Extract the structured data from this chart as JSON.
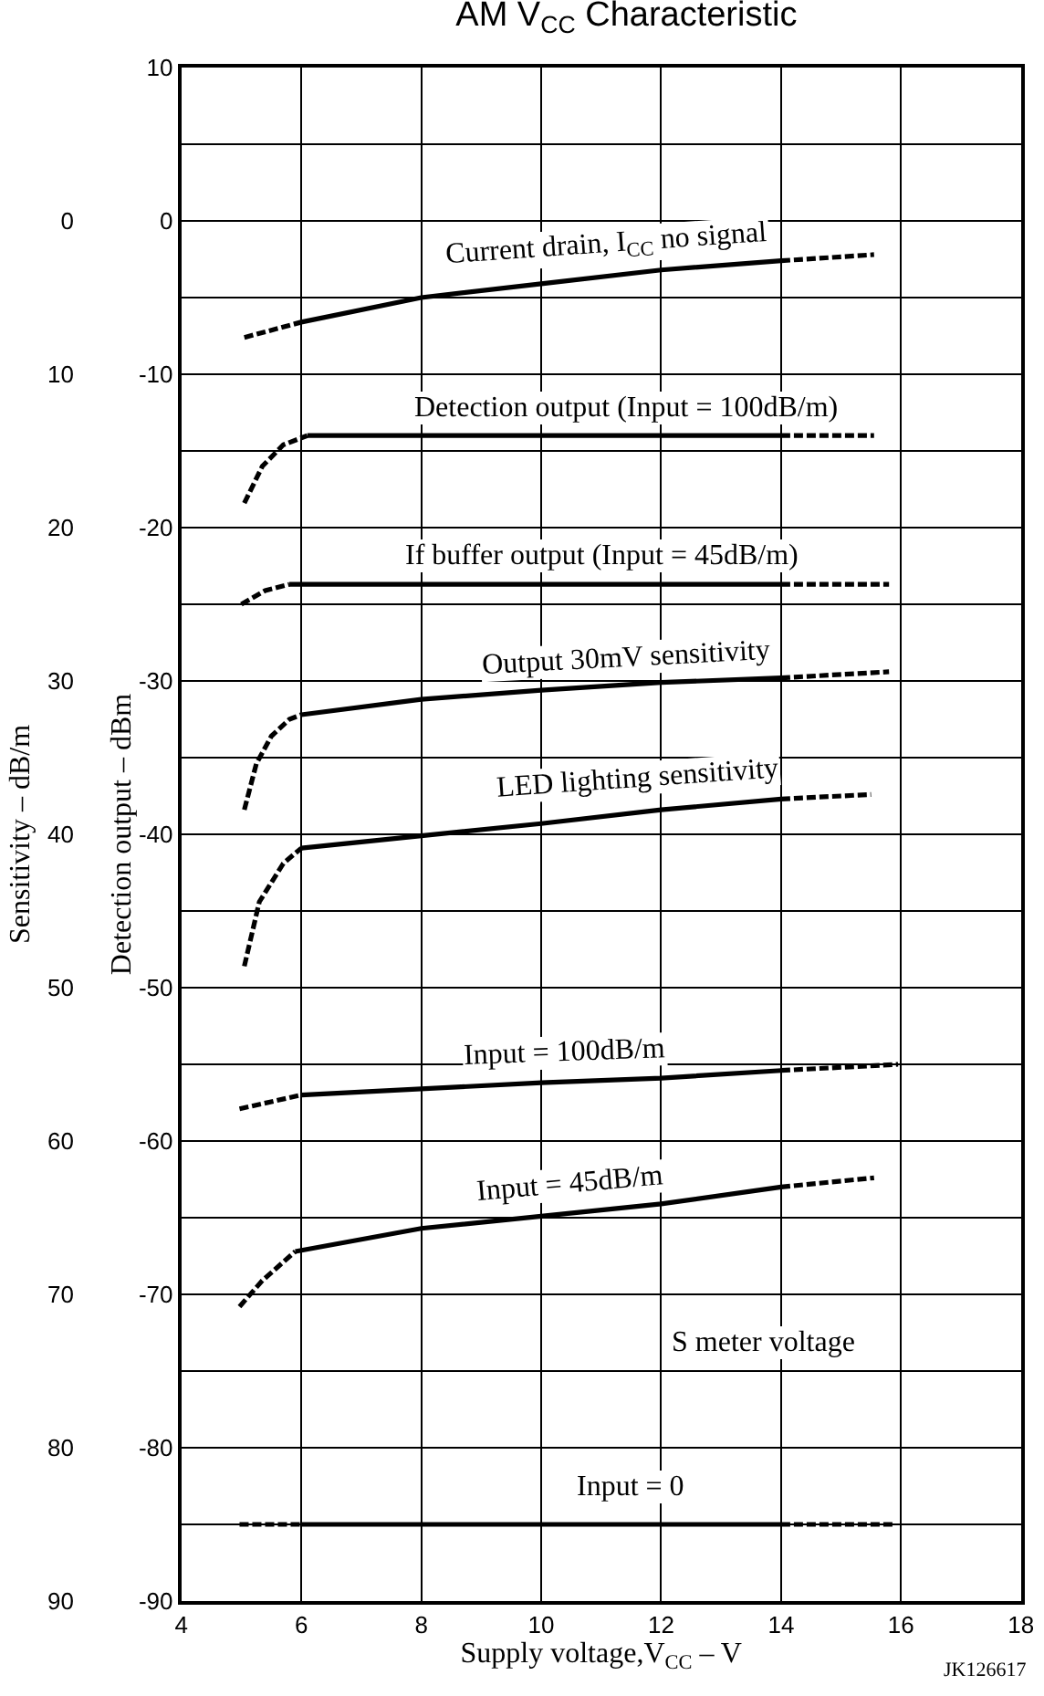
{
  "chart_data": {
    "type": "line",
    "title": "AM V$_{CC}$ Characteristic",
    "xlabel": "Supply voltage,V$_{CC}$ – V",
    "ylabel": "Detection output – dBm",
    "y2label": "Sensitivity – dB/m",
    "xlim": [
      4,
      18
    ],
    "xticks": [
      4,
      6,
      8,
      10,
      12,
      14,
      16,
      18
    ],
    "ylim": [
      -90,
      10
    ],
    "yticks": [
      10,
      {
        "value": 5,
        "label": null
      },
      0,
      {
        "value": -5,
        "label": null
      },
      -10,
      {
        "value": -15,
        "label": null
      },
      -20,
      {
        "value": -25,
        "label": null
      },
      -30,
      {
        "value": -35,
        "label": null
      },
      -40,
      {
        "value": -45,
        "label": null
      },
      -50,
      {
        "value": -55,
        "label": null
      },
      -60,
      {
        "value": -65,
        "label": null
      },
      -70,
      {
        "value": -75,
        "label": null
      },
      -80,
      {
        "value": -85,
        "label": null
      },
      -90
    ],
    "y2lim": [
      90,
      -10
    ],
    "y2ticks": [
      0,
      10,
      20,
      30,
      40,
      50,
      60,
      70,
      80,
      90
    ],
    "grid": true,
    "marker": "none",
    "series": [
      {
        "x": [
          5.05,
          6
        ],
        "values": [
          -7.6,
          -6.6
        ],
        "color": "#000000",
        "line_style": "dashed"
      },
      {
        "x": [
          6,
          8,
          10,
          12,
          14
        ],
        "values": [
          -6.6,
          -5.0,
          -4.1,
          -3.2,
          -2.6
        ],
        "color": "#000000",
        "line_style": "solid"
      },
      {
        "x": [
          14,
          15.55
        ],
        "values": [
          -2.6,
          -2.2
        ],
        "color": "#000000",
        "line_style": "dashed"
      },
      {
        "x": [
          5.05,
          5.35,
          5.7,
          6.1
        ],
        "values": [
          -18.4,
          -16.0,
          -14.6,
          -14.0
        ],
        "color": "#000000",
        "line_style": "dashed"
      },
      {
        "x": [
          6.1,
          10,
          14
        ],
        "values": [
          -14.0,
          -14.0,
          -14.0
        ],
        "color": "#000000",
        "line_style": "solid"
      },
      {
        "x": [
          14,
          15.55
        ],
        "values": [
          -14.0,
          -14.0
        ],
        "color": "#000000",
        "line_style": "dashed"
      },
      {
        "x": [
          5.0,
          5.4,
          5.8
        ],
        "values": [
          -25.0,
          -24.1,
          -23.7
        ],
        "color": "#000000",
        "line_style": "dashed"
      },
      {
        "x": [
          5.8,
          10,
          14
        ],
        "values": [
          -23.7,
          -23.7,
          -23.7
        ],
        "color": "#000000",
        "line_style": "solid"
      },
      {
        "x": [
          14,
          15.8
        ],
        "values": [
          -23.7,
          -23.7
        ],
        "color": "#000000",
        "line_style": "dashed"
      },
      {
        "x": [
          5.05,
          5.25,
          5.5,
          5.8,
          6
        ],
        "values": [
          -38.4,
          -35.4,
          -33.6,
          -32.5,
          -32.2
        ],
        "color": "#000000",
        "line_style": "dashed"
      },
      {
        "x": [
          6,
          8,
          10,
          12,
          14
        ],
        "values": [
          -32.2,
          -31.2,
          -30.6,
          -30.1,
          -29.8
        ],
        "color": "#000000",
        "line_style": "solid"
      },
      {
        "x": [
          14,
          15.8
        ],
        "values": [
          -29.8,
          -29.4
        ],
        "color": "#000000",
        "line_style": "dashed"
      },
      {
        "x": [
          5.05,
          5.3,
          5.7,
          6
        ],
        "values": [
          -48.6,
          -44.4,
          -41.9,
          -40.9
        ],
        "color": "#000000",
        "line_style": "dashed"
      },
      {
        "x": [
          6,
          8,
          10,
          12,
          14
        ],
        "values": [
          -40.9,
          -40.1,
          -39.3,
          -38.4,
          -37.7
        ],
        "color": "#000000",
        "line_style": "solid"
      },
      {
        "x": [
          14,
          15.5
        ],
        "values": [
          -37.7,
          -37.4
        ],
        "color": "#000000",
        "line_style": "dashed"
      },
      {
        "x": [
          4.97,
          6
        ],
        "values": [
          -57.9,
          -57.0
        ],
        "color": "#000000",
        "line_style": "dashed"
      },
      {
        "x": [
          6,
          10,
          12,
          14
        ],
        "values": [
          -57.0,
          -56.2,
          -55.9,
          -55.4
        ],
        "color": "#000000",
        "line_style": "solid"
      },
      {
        "x": [
          14,
          15.95
        ],
        "values": [
          -55.4,
          -55.0
        ],
        "color": "#000000",
        "line_style": "dashed"
      },
      {
        "x": [
          4.97,
          5.35,
          5.9
        ],
        "values": [
          -70.8,
          -69.1,
          -67.2
        ],
        "color": "#000000",
        "line_style": "dashed"
      },
      {
        "x": [
          5.9,
          8,
          10,
          12,
          14
        ],
        "values": [
          -67.2,
          -65.7,
          -64.9,
          -64.1,
          -63.0
        ],
        "color": "#000000",
        "line_style": "solid"
      },
      {
        "x": [
          14,
          15.55
        ],
        "values": [
          -63.0,
          -62.4
        ],
        "color": "#000000",
        "line_style": "dashed"
      },
      {
        "x": [
          4.97,
          6
        ],
        "values": [
          -85.0,
          -85.0
        ],
        "color": "#000000",
        "line_style": "dashed"
      },
      {
        "x": [
          6,
          10,
          14
        ],
        "values": [
          -85.0,
          -85.0,
          -85.0
        ],
        "color": "#000000",
        "line_style": "solid"
      },
      {
        "x": [
          14,
          15.9
        ],
        "values": [
          -85.0,
          -85.0
        ],
        "color": "#000000",
        "line_style": "dashed"
      }
    ],
    "annotations": [
      "Current drain, I$_{CC}$ no signal",
      "Detection output (Input = 100dB/m)",
      "If buffer output (Input = 45dB/m)",
      "Output 30mV sensitivity",
      "LED lighting sensitivity",
      "Input = 100dB/m",
      "Input = 45dB/m",
      "S meter voltage",
      "Input = 0",
      "JK126617"
    ]
  }
}
